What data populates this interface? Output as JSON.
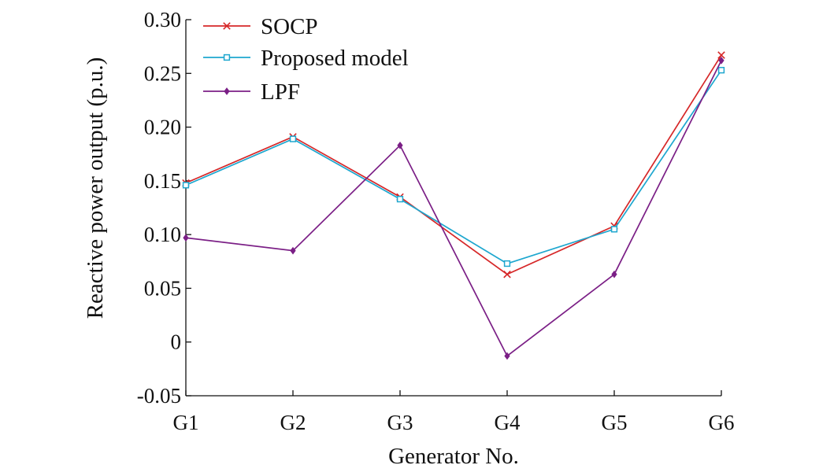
{
  "chart_data": {
    "type": "line",
    "categories": [
      "G1",
      "G2",
      "G3",
      "G4",
      "G5",
      "G6"
    ],
    "xlabel": "Generator No.",
    "ylabel": "Reactive power output (p.u.)",
    "ylim": [
      -0.05,
      0.3
    ],
    "yticks": [
      {
        "value": -0.05,
        "label": "-0.05"
      },
      {
        "value": 0.0,
        "label": "0"
      },
      {
        "value": 0.05,
        "label": "0.05"
      },
      {
        "value": 0.1,
        "label": "0.10"
      },
      {
        "value": 0.15,
        "label": "0.15"
      },
      {
        "value": 0.2,
        "label": "0.20"
      },
      {
        "value": 0.25,
        "label": "0.25"
      },
      {
        "value": 0.3,
        "label": "0.30"
      }
    ],
    "grid": false,
    "legend_position": "top-left",
    "series": [
      {
        "name": "SOCP",
        "color": "#d62728",
        "marker": "x",
        "values": [
          0.148,
          0.191,
          0.135,
          0.063,
          0.108,
          0.267
        ]
      },
      {
        "name": "Proposed model",
        "color": "#1ea7cf",
        "marker": "square",
        "values": [
          0.146,
          0.189,
          0.133,
          0.073,
          0.105,
          0.253
        ]
      },
      {
        "name": "LPF",
        "color": "#7b1f86",
        "marker": "diamond",
        "values": [
          0.097,
          0.085,
          0.183,
          -0.013,
          0.063,
          0.262
        ]
      }
    ]
  }
}
